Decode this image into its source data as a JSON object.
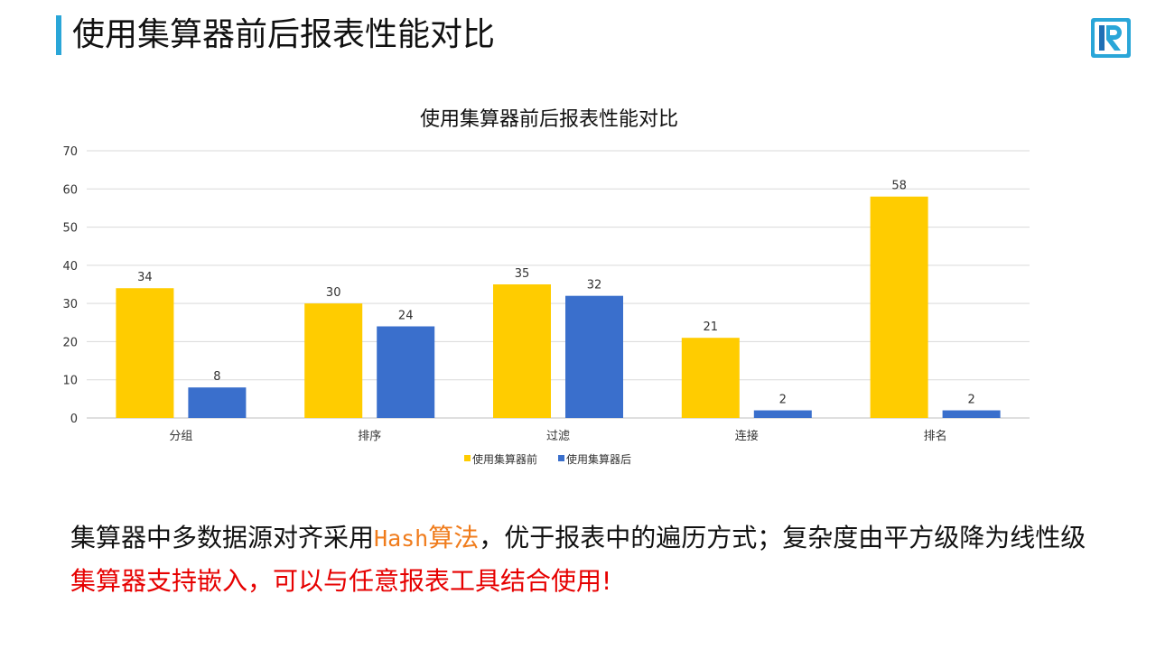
{
  "slide": {
    "title": "使用集算器前后报表性能对比",
    "accent_color": "#2aa6d8",
    "logo_icon": "r-logo-icon"
  },
  "chart_data": {
    "type": "bar",
    "title": "使用集算器前后报表性能对比",
    "categories": [
      "分组",
      "排序",
      "过滤",
      "连接",
      "排名"
    ],
    "series": [
      {
        "name": "使用集算器前",
        "values": [
          34,
          30,
          35,
          21,
          58
        ],
        "color": "#ffcc00"
      },
      {
        "name": "使用集算器后",
        "values": [
          8,
          24,
          32,
          2,
          2
        ],
        "color": "#3a6fcc"
      }
    ],
    "yticks": [
      "0",
      "10",
      "20",
      "30",
      "40",
      "50",
      "60",
      "70"
    ],
    "ylim": [
      0,
      70
    ],
    "grid": true,
    "legend": "bottom"
  },
  "footer": {
    "line1_a": "集算器中多数据源对齐采用",
    "line1_hash": "Hash",
    "line1_alg": "算法",
    "line1_b": "，优于报表中的遍历方式；复杂度由平方级降为线性级",
    "line2": "集算器支持嵌入，可以与任意报表工具结合使用!"
  }
}
